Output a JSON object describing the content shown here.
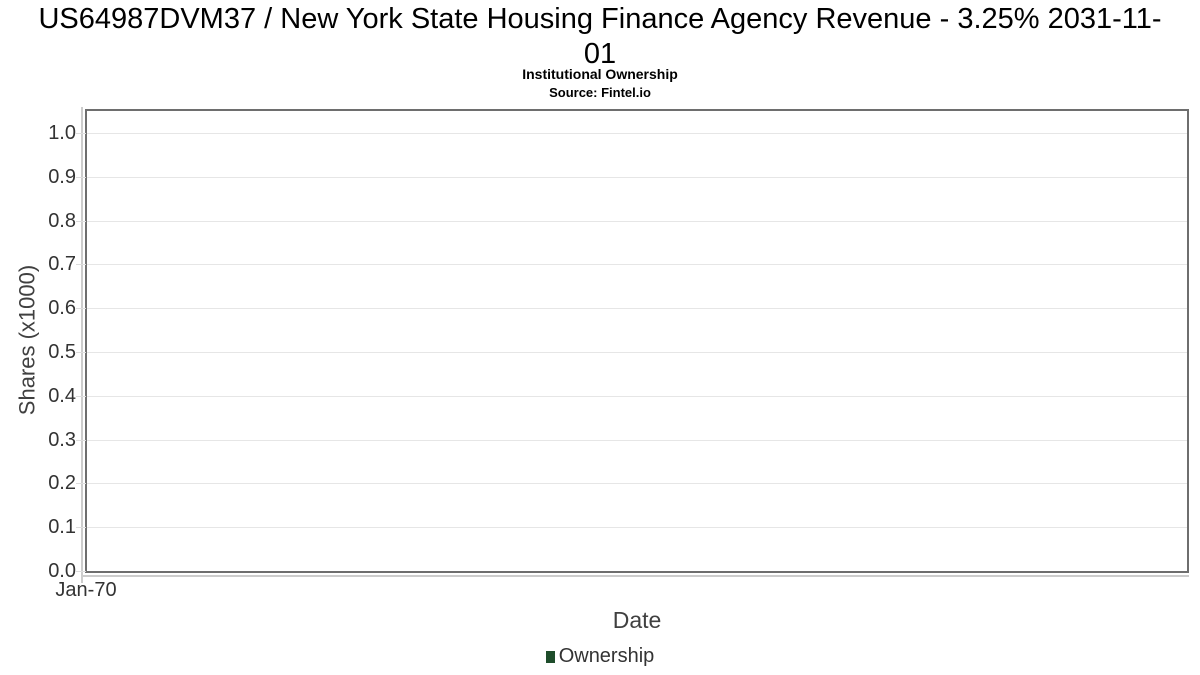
{
  "chart_data": {
    "type": "line",
    "title": "US64987DVM37 / New York State Housing Finance Agency Revenue - 3.25% 2031-11-01",
    "subtitle": "Institutional Ownership",
    "source": "Source: Fintel.io",
    "xlabel": "Date",
    "ylabel": "Shares (x1000)",
    "x_tick_labels": [
      "Jan-70"
    ],
    "y_tick_labels": [
      "0.0",
      "0.1",
      "0.2",
      "0.3",
      "0.4",
      "0.5",
      "0.6",
      "0.7",
      "0.8",
      "0.9",
      "1.0"
    ],
    "ylim": [
      0,
      1.05
    ],
    "grid": "horizontal-only",
    "legend_position": "bottom-center",
    "series": [
      {
        "name": "Ownership",
        "color": "#1e4d2b",
        "legend_marker": "square",
        "x": [],
        "values": []
      }
    ]
  }
}
